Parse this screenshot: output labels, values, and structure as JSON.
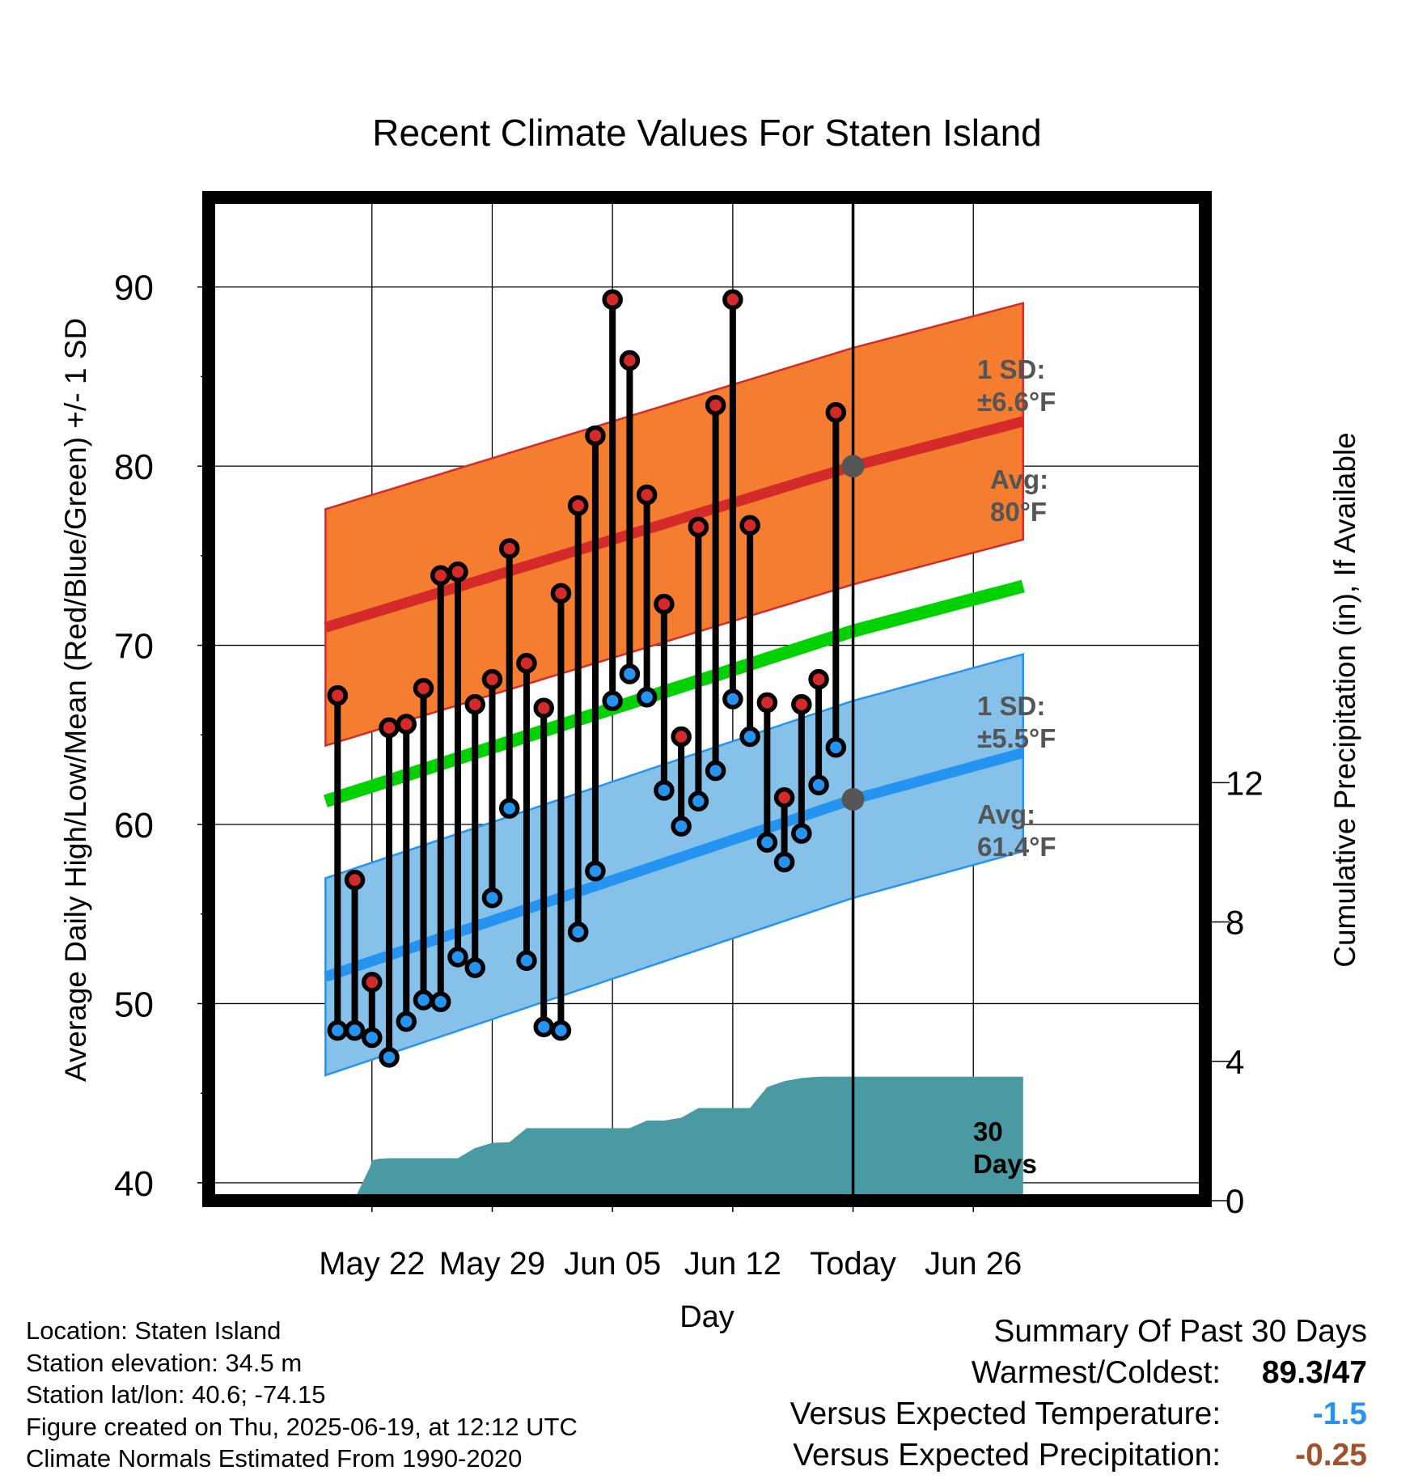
{
  "chart_data": {
    "type": "line",
    "title": "Recent Climate Values For Staten Island",
    "xlabel": "Day",
    "ylabel": "Average Daily High/Low/Mean (Red/Blue/Green) +/- 1 SD",
    "y2label": "Cumulative Precipitation (in), If Available",
    "ylim": [
      39,
      95
    ],
    "y2lim": [
      0,
      28.8
    ],
    "xlim": [
      -9.5,
      48.5
    ],
    "x_ticks": [
      {
        "day": 0,
        "label": "May 22"
      },
      {
        "day": 7,
        "label": "May 29"
      },
      {
        "day": 14,
        "label": "Jun 05"
      },
      {
        "day": 21,
        "label": "Jun 12"
      },
      {
        "day": 28,
        "label": "Today"
      },
      {
        "day": 35,
        "label": "Jun 26"
      }
    ],
    "y_ticks": [
      40,
      50,
      60,
      70,
      80,
      90
    ],
    "y2_ticks": [
      0,
      4,
      8,
      12
    ],
    "grid": true,
    "today_day": 28,
    "normals": {
      "high_avg": {
        "x": [
          -2.7,
          28,
          37.9
        ],
        "y": [
          71.0,
          80.0,
          82.5
        ]
      },
      "high_sd": 6.6,
      "low_avg": {
        "x": [
          -2.7,
          28,
          37.9
        ],
        "y": [
          51.5,
          61.4,
          64.0
        ]
      },
      "low_sd": 5.5,
      "mean": {
        "x": [
          -2.7,
          28,
          37.9
        ],
        "y": [
          61.3,
          70.8,
          73.3
        ]
      }
    },
    "series": [
      {
        "name": "High",
        "color": "#d42a2a",
        "x": [
          -2,
          -1,
          0,
          1,
          2,
          3,
          4,
          5,
          6,
          7,
          8,
          9,
          10,
          11,
          12,
          13,
          14,
          15,
          16,
          17,
          18,
          19,
          20,
          21,
          22,
          23,
          24,
          25,
          26,
          27
        ],
        "values": [
          67.2,
          56.9,
          51.2,
          65.4,
          65.6,
          67.6,
          73.9,
          74.1,
          66.7,
          68.1,
          75.4,
          69.0,
          66.5,
          72.9,
          77.8,
          81.7,
          89.3,
          85.9,
          78.4,
          72.3,
          64.9,
          76.6,
          83.4,
          89.3,
          76.7,
          66.8,
          61.5,
          66.7,
          68.1,
          83.0
        ]
      },
      {
        "name": "Low",
        "color": "#2593f0",
        "x": [
          -2,
          -1,
          0,
          1,
          2,
          3,
          4,
          5,
          6,
          7,
          8,
          9,
          10,
          11,
          12,
          13,
          14,
          15,
          16,
          17,
          18,
          19,
          20,
          21,
          22,
          23,
          24,
          25,
          26,
          27
        ],
        "values": [
          48.5,
          48.5,
          48.1,
          47.0,
          49.0,
          50.2,
          50.1,
          52.6,
          52.0,
          55.9,
          60.9,
          52.4,
          48.7,
          48.5,
          54.0,
          57.4,
          66.9,
          68.4,
          67.1,
          61.9,
          59.9,
          61.3,
          63.0,
          67.0,
          64.9,
          59.0,
          57.9,
          59.5,
          62.2,
          64.3
        ]
      },
      {
        "name": "Cumulative Precipitation",
        "x": [
          -2.7,
          -1,
          -0.1,
          0,
          0.4,
          1,
          2,
          3,
          4,
          5,
          6,
          7,
          8,
          9,
          10,
          11,
          12,
          13,
          14,
          15,
          16,
          17,
          18,
          19,
          20,
          21,
          22,
          23,
          24,
          25,
          26,
          27,
          28,
          37.9
        ],
        "values": [
          0,
          0.05,
          0.98,
          1.16,
          1.2,
          1.22,
          1.22,
          1.22,
          1.22,
          1.22,
          1.51,
          1.66,
          1.68,
          2.08,
          2.08,
          2.08,
          2.08,
          2.08,
          2.08,
          2.08,
          2.3,
          2.3,
          2.38,
          2.66,
          2.66,
          2.66,
          2.66,
          3.26,
          3.43,
          3.52,
          3.56,
          3.56,
          3.56,
          3.56
        ]
      }
    ],
    "annotations": {
      "high_sd": "1 SD:\n±6.6°F",
      "high_avg": "Avg:\n80°F",
      "low_sd": "1 SD:\n±5.5°F",
      "low_avg": "Avg:\n61.4°F",
      "window": "30\nDays"
    },
    "colors": {
      "high_band": "#f47d30",
      "high_line": "#d42a2a",
      "low_band": "#85c1e9",
      "low_line": "#2593f0",
      "mean_line": "#00d200",
      "precip": "#4a9aa3",
      "annotation_text": "#555555"
    }
  },
  "info": {
    "location": "Location: Staten Island",
    "elevation": "Station elevation: 34.5 m",
    "latlon": "Station lat/lon: 40.6; -74.15",
    "created": "Figure created on Thu, 2025-06-19, at 12:12 UTC",
    "normals": "Climate Normals Estimated From 1990-2020"
  },
  "summary": {
    "heading": "Summary Of Past 30 Days",
    "warmest_label": "Warmest/Coldest:",
    "warmest_value": "89.3",
    "sep": "/",
    "coldest_value": "47",
    "temp_label": "Versus Expected Temperature:",
    "temp_value": "-1.5",
    "temp_color": "#2593f0",
    "precip_label": "Versus Expected Precipitation:",
    "precip_value": "-0.25",
    "precip_color": "#a0522d"
  }
}
